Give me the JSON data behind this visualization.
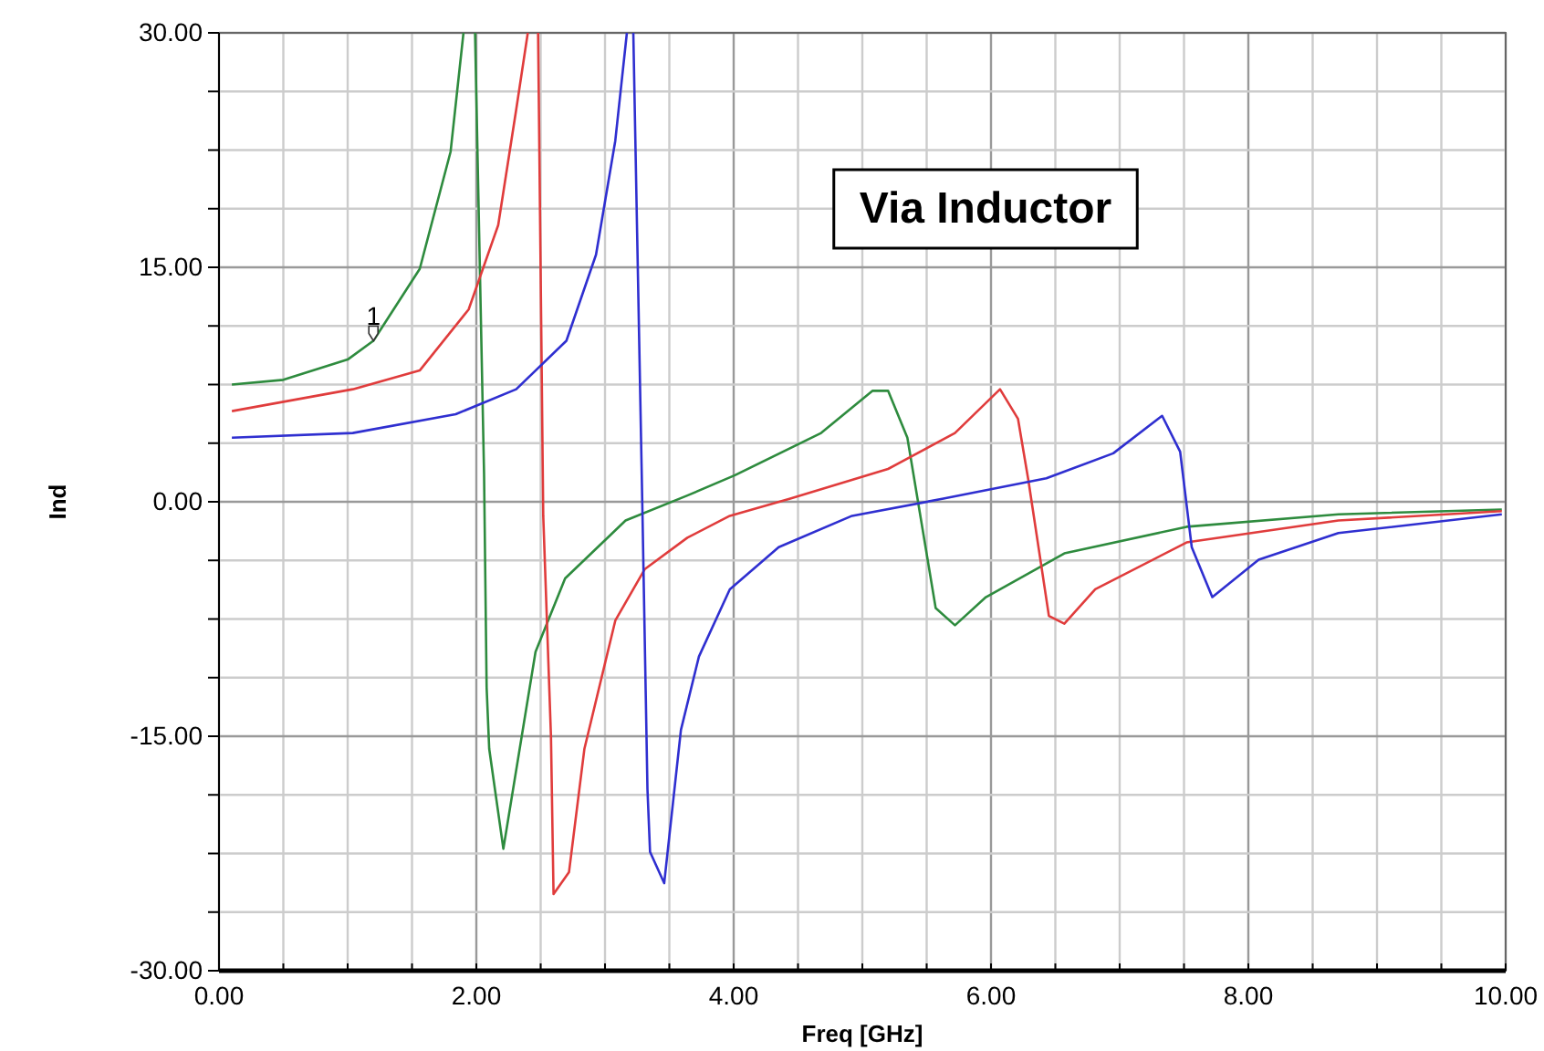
{
  "chart_data": {
    "type": "line",
    "title": "Via Inductor",
    "xlabel": "Freq [GHz]",
    "ylabel": "Ind",
    "xlim": [
      0,
      10
    ],
    "ylim": [
      -30,
      30
    ],
    "xticks": [
      {
        "value": 0,
        "label": "0.00"
      },
      {
        "value": 0.5,
        "label": null
      },
      {
        "value": 1,
        "label": null
      },
      {
        "value": 1.5,
        "label": null
      },
      {
        "value": 2,
        "label": "2.00"
      },
      {
        "value": 2.5,
        "label": null
      },
      {
        "value": 3,
        "label": null
      },
      {
        "value": 3.5,
        "label": null
      },
      {
        "value": 4,
        "label": "4.00"
      },
      {
        "value": 4.5,
        "label": null
      },
      {
        "value": 5,
        "label": null
      },
      {
        "value": 5.5,
        "label": null
      },
      {
        "value": 6,
        "label": "6.00"
      },
      {
        "value": 6.5,
        "label": null
      },
      {
        "value": 7,
        "label": null
      },
      {
        "value": 7.5,
        "label": null
      },
      {
        "value": 8,
        "label": "8.00"
      },
      {
        "value": 8.5,
        "label": null
      },
      {
        "value": 9,
        "label": null
      },
      {
        "value": 9.5,
        "label": null
      },
      {
        "value": 10,
        "label": "10.00"
      }
    ],
    "yticks": [
      {
        "value": -30,
        "label": "-30.00"
      },
      {
        "value": -26.25,
        "label": null
      },
      {
        "value": -22.5,
        "label": null
      },
      {
        "value": -18.75,
        "label": null
      },
      {
        "value": -15,
        "label": "-15.00"
      },
      {
        "value": -11.25,
        "label": null
      },
      {
        "value": -7.5,
        "label": null
      },
      {
        "value": -3.75,
        "label": null
      },
      {
        "value": 0,
        "label": "0.00"
      },
      {
        "value": 3.75,
        "label": null
      },
      {
        "value": 7.5,
        "label": null
      },
      {
        "value": 11.25,
        "label": null
      },
      {
        "value": 15,
        "label": "15.00"
      },
      {
        "value": 18.75,
        "label": null
      },
      {
        "value": 22.5,
        "label": null
      },
      {
        "value": 26.25,
        "label": null
      },
      {
        "value": 30,
        "label": "30.00"
      }
    ],
    "grid": true,
    "marker": "none",
    "line_style": "solid",
    "annotations": [
      {
        "text": "1",
        "x": 1.2,
        "y": 10.3
      }
    ],
    "series": [
      {
        "color": "#2e8b3e",
        "x": [
          0.1,
          0.5,
          1.0,
          1.2,
          1.56,
          1.8,
          1.9,
          1.95,
          1.99,
          2.06,
          2.08,
          2.1,
          2.21,
          2.46,
          2.69,
          3.16,
          3.64,
          4.01,
          4.68,
          5.08,
          5.2,
          5.35,
          5.57,
          5.72,
          5.96,
          6.57,
          7.52,
          8.7,
          9.97
        ],
        "values": [
          7.5,
          7.8,
          9.1,
          10.3,
          14.9,
          22.4,
          30,
          null,
          30,
          1.8,
          -11.9,
          -15.8,
          -22.2,
          -9.6,
          -4.9,
          -1.2,
          0.4,
          1.7,
          4.4,
          7.1,
          7.1,
          4.1,
          -6.8,
          -7.9,
          -6.1,
          -3.3,
          -1.6,
          -0.8,
          -0.5
        ]
      },
      {
        "color": "#e03c3c",
        "x": [
          0.1,
          1.04,
          1.56,
          1.94,
          2.17,
          2.31,
          2.4,
          2.45,
          2.48,
          2.52,
          2.58,
          2.6,
          2.72,
          2.84,
          3.08,
          3.31,
          3.64,
          3.97,
          4.44,
          5.2,
          5.72,
          6.07,
          6.21,
          6.29,
          6.45,
          6.57,
          6.81,
          7.52,
          8.7,
          9.97
        ],
        "values": [
          5.8,
          7.2,
          8.4,
          12.3,
          17.7,
          25.1,
          30,
          null,
          30,
          -0.9,
          -15,
          -25.1,
          -23.7,
          -15.8,
          -7.6,
          -4.3,
          -2.3,
          -0.9,
          0.2,
          2.1,
          4.4,
          7.2,
          5.3,
          1.4,
          -7.3,
          -7.8,
          -5.6,
          -2.6,
          -1.2,
          -0.6
        ]
      },
      {
        "color": "#2f2fd0",
        "x": [
          0.1,
          1.04,
          1.84,
          2.31,
          2.7,
          2.93,
          3.08,
          3.17,
          3.2,
          3.22,
          3.29,
          3.33,
          3.35,
          3.46,
          3.59,
          3.73,
          3.97,
          4.35,
          4.92,
          5.63,
          6.43,
          6.95,
          7.33,
          7.47,
          7.56,
          7.72,
          8.08,
          8.7,
          9.97
        ],
        "values": [
          4.1,
          4.4,
          5.6,
          7.2,
          10.3,
          15.8,
          23.1,
          30,
          null,
          30,
          -0.2,
          -18.4,
          -22.4,
          -24.4,
          -14.6,
          -9.9,
          -5.6,
          -2.9,
          -0.9,
          0.2,
          1.5,
          3.1,
          5.5,
          3.2,
          -2.9,
          -6.1,
          -3.7,
          -2.0,
          -0.8
        ]
      }
    ]
  }
}
